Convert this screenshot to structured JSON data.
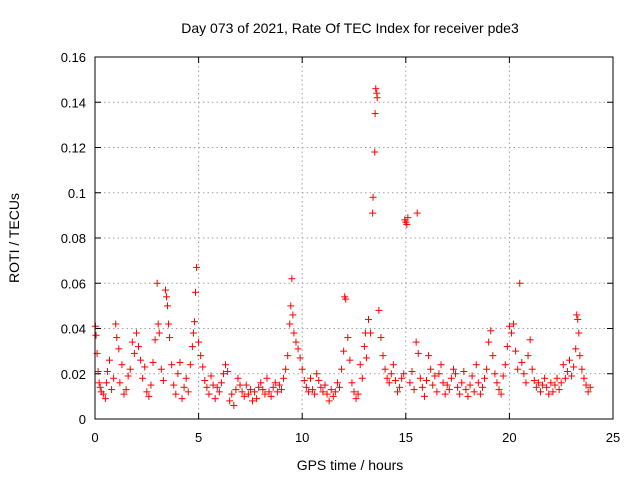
{
  "chart_data": {
    "type": "scatter",
    "title": "Day 073 of 2021, Rate Of TEC Index for receiver pde3",
    "xlabel": "GPS time / hours",
    "ylabel": "ROTI / TECUs",
    "xlim": [
      0,
      25
    ],
    "ylim": [
      0,
      0.16
    ],
    "xticks": [
      0,
      5,
      10,
      15,
      20,
      25
    ],
    "xtick_labels": [
      "0",
      "5",
      "10",
      "15",
      "20",
      "25"
    ],
    "yticks": [
      0,
      0.02,
      0.04,
      0.06,
      0.08,
      0.1,
      0.12,
      0.14,
      0.16
    ],
    "ytick_labels": [
      "0",
      "0.02",
      "0.04",
      "0.06",
      "0.08",
      "0.1",
      "0.12",
      "0.14",
      "0.16"
    ],
    "grid": true,
    "marker": "+",
    "color": "#ff0000",
    "series": [
      {
        "name": "ROTI",
        "points": [
          [
            0.02,
            0.041
          ],
          [
            0.05,
            0.037
          ],
          [
            0.1,
            0.029
          ],
          [
            0.15,
            0.021
          ],
          [
            0.2,
            0.016
          ],
          [
            0.25,
            0.014
          ],
          [
            0.3,
            0.012
          ],
          [
            0.4,
            0.011
          ],
          [
            0.5,
            0.009
          ],
          [
            0.55,
            0.016
          ],
          [
            0.6,
            0.021
          ],
          [
            0.7,
            0.026
          ],
          [
            0.8,
            0.013
          ],
          [
            0.9,
            0.018
          ],
          [
            1.0,
            0.042
          ],
          [
            1.05,
            0.036
          ],
          [
            1.15,
            0.031
          ],
          [
            1.2,
            0.016
          ],
          [
            1.3,
            0.024
          ],
          [
            1.4,
            0.011
          ],
          [
            1.5,
            0.013
          ],
          [
            1.6,
            0.019
          ],
          [
            1.7,
            0.022
          ],
          [
            1.8,
            0.034
          ],
          [
            1.9,
            0.029
          ],
          [
            2.0,
            0.038
          ],
          [
            2.1,
            0.032
          ],
          [
            2.2,
            0.026
          ],
          [
            2.3,
            0.018
          ],
          [
            2.4,
            0.023
          ],
          [
            2.5,
            0.012
          ],
          [
            2.6,
            0.01
          ],
          [
            2.7,
            0.015
          ],
          [
            2.8,
            0.025
          ],
          [
            2.9,
            0.035
          ],
          [
            3.0,
            0.06
          ],
          [
            3.05,
            0.042
          ],
          [
            3.1,
            0.038
          ],
          [
            3.2,
            0.022
          ],
          [
            3.3,
            0.017
          ],
          [
            3.4,
            0.057
          ],
          [
            3.45,
            0.054
          ],
          [
            3.5,
            0.05
          ],
          [
            3.55,
            0.042
          ],
          [
            3.6,
            0.036
          ],
          [
            3.7,
            0.024
          ],
          [
            3.8,
            0.015
          ],
          [
            3.9,
            0.011
          ],
          [
            4.0,
            0.02
          ],
          [
            4.1,
            0.025
          ],
          [
            4.2,
            0.009
          ],
          [
            4.3,
            0.014
          ],
          [
            4.4,
            0.018
          ],
          [
            4.5,
            0.012
          ],
          [
            4.6,
            0.024
          ],
          [
            4.7,
            0.032
          ],
          [
            4.75,
            0.038
          ],
          [
            4.8,
            0.043
          ],
          [
            4.85,
            0.056
          ],
          [
            4.9,
            0.067
          ],
          [
            5.0,
            0.034
          ],
          [
            5.1,
            0.028
          ],
          [
            5.2,
            0.023
          ],
          [
            5.3,
            0.017
          ],
          [
            5.4,
            0.014
          ],
          [
            5.5,
            0.011
          ],
          [
            5.6,
            0.019
          ],
          [
            5.7,
            0.015
          ],
          [
            5.8,
            0.009
          ],
          [
            5.9,
            0.014
          ],
          [
            6.0,
            0.012
          ],
          [
            6.1,
            0.016
          ],
          [
            6.2,
            0.02
          ],
          [
            6.3,
            0.024
          ],
          [
            6.4,
            0.021
          ],
          [
            6.5,
            0.008
          ],
          [
            6.6,
            0.011
          ],
          [
            6.7,
            0.006
          ],
          [
            6.8,
            0.013
          ],
          [
            6.9,
            0.018
          ],
          [
            7.0,
            0.015
          ],
          [
            7.1,
            0.012
          ],
          [
            7.2,
            0.01
          ],
          [
            7.3,
            0.015
          ],
          [
            7.4,
            0.011
          ],
          [
            7.5,
            0.013
          ],
          [
            7.6,
            0.008
          ],
          [
            7.7,
            0.012
          ],
          [
            7.8,
            0.009
          ],
          [
            7.9,
            0.014
          ],
          [
            8.0,
            0.016
          ],
          [
            8.1,
            0.013
          ],
          [
            8.2,
            0.011
          ],
          [
            8.3,
            0.018
          ],
          [
            8.4,
            0.012
          ],
          [
            8.5,
            0.01
          ],
          [
            8.6,
            0.014
          ],
          [
            8.7,
            0.016
          ],
          [
            8.8,
            0.012
          ],
          [
            8.9,
            0.015
          ],
          [
            9.0,
            0.013
          ],
          [
            9.1,
            0.018
          ],
          [
            9.2,
            0.022
          ],
          [
            9.3,
            0.028
          ],
          [
            9.4,
            0.042
          ],
          [
            9.45,
            0.05
          ],
          [
            9.5,
            0.062
          ],
          [
            9.55,
            0.046
          ],
          [
            9.6,
            0.038
          ],
          [
            9.7,
            0.034
          ],
          [
            9.8,
            0.031
          ],
          [
            9.9,
            0.027
          ],
          [
            10.0,
            0.022
          ],
          [
            10.1,
            0.017
          ],
          [
            10.2,
            0.014
          ],
          [
            10.3,
            0.012
          ],
          [
            10.4,
            0.018
          ],
          [
            10.5,
            0.013
          ],
          [
            10.6,
            0.011
          ],
          [
            10.7,
            0.02
          ],
          [
            10.8,
            0.017
          ],
          [
            10.9,
            0.014
          ],
          [
            11.0,
            0.012
          ],
          [
            11.1,
            0.015
          ],
          [
            11.2,
            0.011
          ],
          [
            11.3,
            0.008
          ],
          [
            11.4,
            0.013
          ],
          [
            11.5,
            0.01
          ],
          [
            11.6,
            0.012
          ],
          [
            11.7,
            0.016
          ],
          [
            11.8,
            0.014
          ],
          [
            11.9,
            0.022
          ],
          [
            12.0,
            0.03
          ],
          [
            12.05,
            0.054
          ],
          [
            12.1,
            0.053
          ],
          [
            12.2,
            0.036
          ],
          [
            12.3,
            0.026
          ],
          [
            12.4,
            0.016
          ],
          [
            12.5,
            0.012
          ],
          [
            12.6,
            0.009
          ],
          [
            12.7,
            0.011
          ],
          [
            12.8,
            0.024
          ],
          [
            12.9,
            0.018
          ],
          [
            13.0,
            0.032
          ],
          [
            13.05,
            0.038
          ],
          [
            13.1,
            0.027
          ],
          [
            13.2,
            0.044
          ],
          [
            13.3,
            0.038
          ],
          [
            13.4,
            0.091
          ],
          [
            13.42,
            0.098
          ],
          [
            13.5,
            0.118
          ],
          [
            13.52,
            0.135
          ],
          [
            13.55,
            0.146
          ],
          [
            13.6,
            0.144
          ],
          [
            13.62,
            0.142
          ],
          [
            13.7,
            0.048
          ],
          [
            13.8,
            0.036
          ],
          [
            13.9,
            0.028
          ],
          [
            14.0,
            0.022
          ],
          [
            14.1,
            0.018
          ],
          [
            14.2,
            0.016
          ],
          [
            14.3,
            0.02
          ],
          [
            14.4,
            0.024
          ],
          [
            14.5,
            0.017
          ],
          [
            14.6,
            0.012
          ],
          [
            14.7,
            0.014
          ],
          [
            14.8,
            0.018
          ],
          [
            14.9,
            0.02
          ],
          [
            14.95,
            0.088
          ],
          [
            15.0,
            0.087
          ],
          [
            15.05,
            0.086
          ],
          [
            15.1,
            0.089
          ],
          [
            15.2,
            0.016
          ],
          [
            15.3,
            0.021
          ],
          [
            15.4,
            0.013
          ],
          [
            15.5,
            0.034
          ],
          [
            15.55,
            0.091
          ],
          [
            15.6,
            0.029
          ],
          [
            15.7,
            0.018
          ],
          [
            15.8,
            0.014
          ],
          [
            15.9,
            0.01
          ],
          [
            16.0,
            0.017
          ],
          [
            16.1,
            0.028
          ],
          [
            16.2,
            0.022
          ],
          [
            16.3,
            0.015
          ],
          [
            16.4,
            0.019
          ],
          [
            16.5,
            0.012
          ],
          [
            16.6,
            0.02
          ],
          [
            16.7,
            0.024
          ],
          [
            16.8,
            0.016
          ],
          [
            16.9,
            0.011
          ],
          [
            17.0,
            0.015
          ],
          [
            17.1,
            0.013
          ],
          [
            17.2,
            0.018
          ],
          [
            17.3,
            0.022
          ],
          [
            17.4,
            0.02
          ],
          [
            17.5,
            0.014
          ],
          [
            17.6,
            0.011
          ],
          [
            17.7,
            0.016
          ],
          [
            17.8,
            0.021
          ],
          [
            17.9,
            0.013
          ],
          [
            18.0,
            0.01
          ],
          [
            18.1,
            0.015
          ],
          [
            18.2,
            0.019
          ],
          [
            18.3,
            0.012
          ],
          [
            18.4,
            0.024
          ],
          [
            18.5,
            0.016
          ],
          [
            18.6,
            0.011
          ],
          [
            18.7,
            0.014
          ],
          [
            18.8,
            0.018
          ],
          [
            18.9,
            0.022
          ],
          [
            19.0,
            0.034
          ],
          [
            19.1,
            0.039
          ],
          [
            19.2,
            0.028
          ],
          [
            19.3,
            0.02
          ],
          [
            19.4,
            0.016
          ],
          [
            19.5,
            0.013
          ],
          [
            19.6,
            0.011
          ],
          [
            19.7,
            0.019
          ],
          [
            19.8,
            0.024
          ],
          [
            19.9,
            0.032
          ],
          [
            20.0,
            0.041
          ],
          [
            20.1,
            0.038
          ],
          [
            20.2,
            0.042
          ],
          [
            20.3,
            0.03
          ],
          [
            20.4,
            0.022
          ],
          [
            20.5,
            0.06
          ],
          [
            20.6,
            0.025
          ],
          [
            20.7,
            0.02
          ],
          [
            20.8,
            0.016
          ],
          [
            20.9,
            0.028
          ],
          [
            21.0,
            0.035
          ],
          [
            21.1,
            0.022
          ],
          [
            21.2,
            0.017
          ],
          [
            21.3,
            0.014
          ],
          [
            21.4,
            0.016
          ],
          [
            21.5,
            0.012
          ],
          [
            21.6,
            0.015
          ],
          [
            21.7,
            0.018
          ],
          [
            21.8,
            0.014
          ],
          [
            21.9,
            0.011
          ],
          [
            22.0,
            0.016
          ],
          [
            22.1,
            0.012
          ],
          [
            22.2,
            0.015
          ],
          [
            22.3,
            0.018
          ],
          [
            22.4,
            0.013
          ],
          [
            22.5,
            0.016
          ],
          [
            22.6,
            0.024
          ],
          [
            22.7,
            0.018
          ],
          [
            22.8,
            0.021
          ],
          [
            22.9,
            0.026
          ],
          [
            23.0,
            0.019
          ],
          [
            23.1,
            0.023
          ],
          [
            23.2,
            0.031
          ],
          [
            23.25,
            0.046
          ],
          [
            23.3,
            0.044
          ],
          [
            23.35,
            0.038
          ],
          [
            23.4,
            0.028
          ],
          [
            23.5,
            0.022
          ],
          [
            23.6,
            0.018
          ],
          [
            23.7,
            0.015
          ],
          [
            23.8,
            0.012
          ],
          [
            23.9,
            0.014
          ]
        ]
      }
    ]
  }
}
